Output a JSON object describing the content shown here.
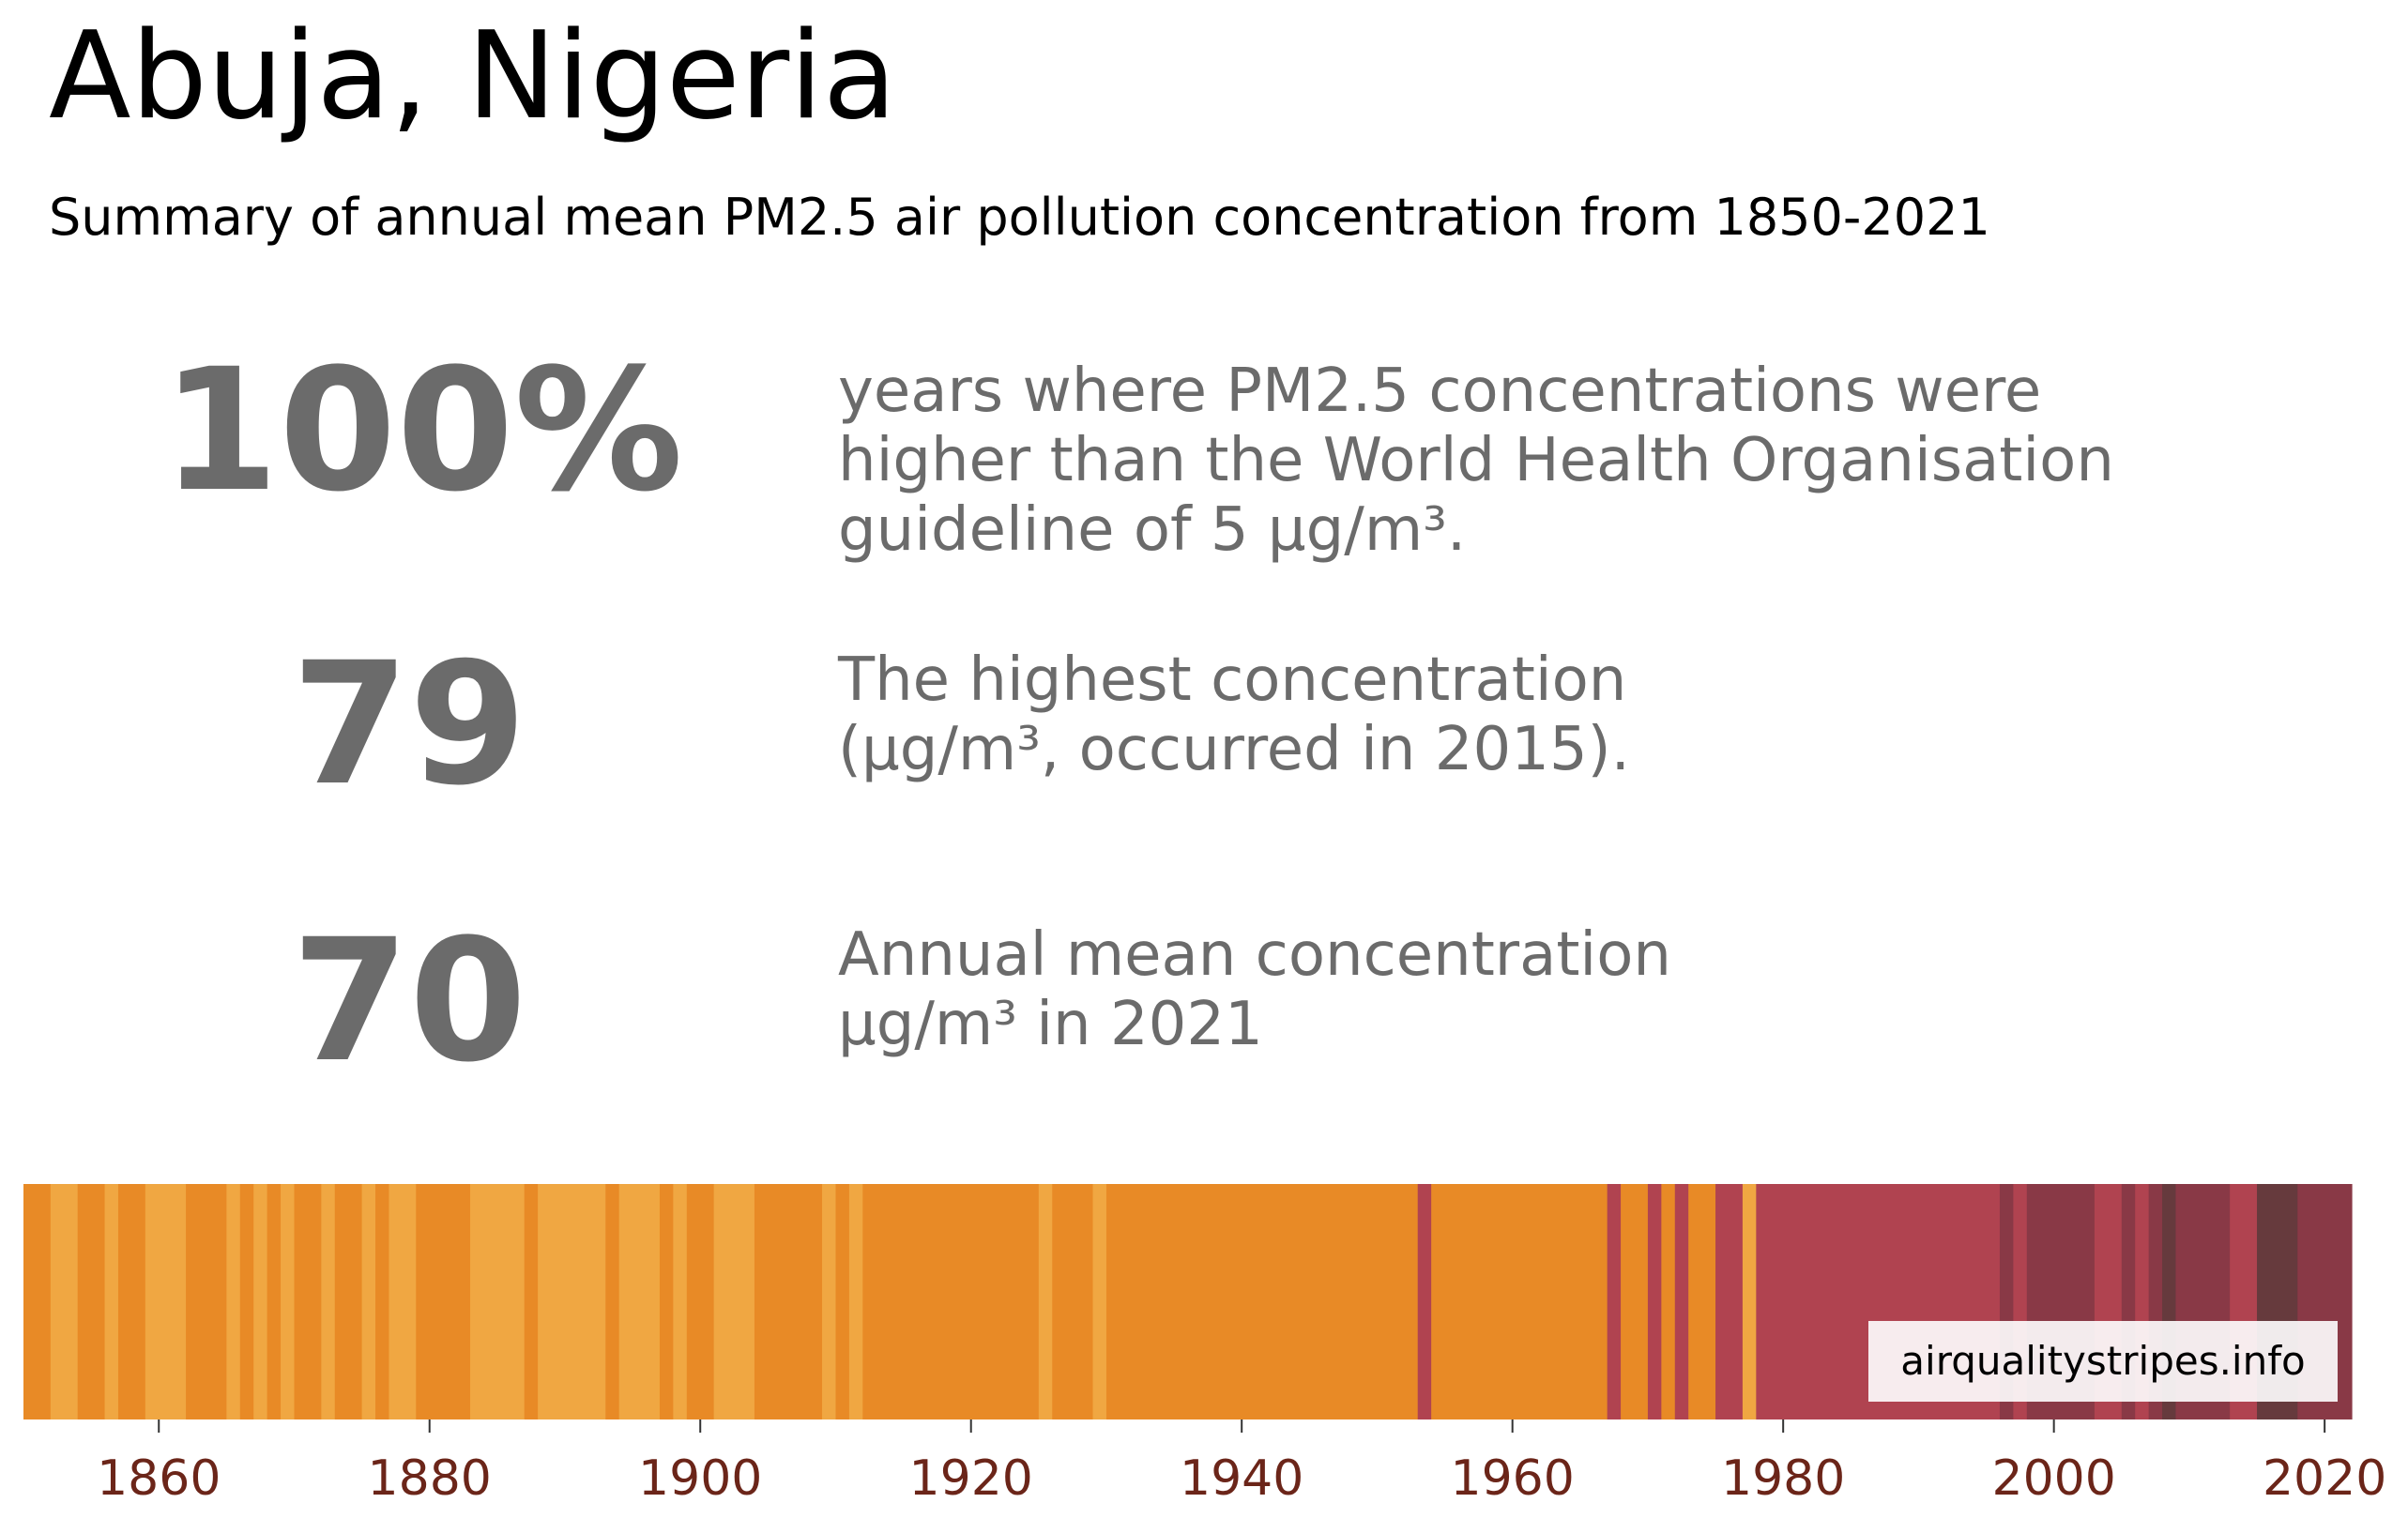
{
  "header": {
    "title": "Abuja, Nigeria",
    "subtitle": "Summary of annual mean PM2.5 air pollution concentration from 1850-2021"
  },
  "stats": [
    {
      "value": "100%",
      "lines": [
        "years where PM2.5 concentrations were",
        "higher than the World Health Organisation",
        "guideline of 5 µg/m³."
      ]
    },
    {
      "value": "79",
      "lines": [
        "The highest concentration",
        "(µg/m³, occurred in 2015)."
      ]
    },
    {
      "value": "70",
      "lines": [
        "Annual mean concentration",
        "µg/m³ in 2021"
      ]
    }
  ],
  "credit": "airqualitystripes.info",
  "colors": {
    "light_orange": "#f0a742",
    "orange": "#e88a26",
    "red": "#b04350",
    "dark_red": "#893946",
    "darkest": "#663a3d",
    "tick_label": "#6b2519",
    "stat_text": "#6b6b6b"
  },
  "chart_data": {
    "type": "heatmap",
    "xlabel": "",
    "ylabel": "",
    "xlim": [
      1850,
      2022
    ],
    "x_ticks": [
      "1860",
      "1880",
      "1900",
      "1920",
      "1940",
      "1960",
      "1980",
      "2000",
      "2020"
    ],
    "grid": false,
    "legend": "none",
    "category_key": {
      "L": "light_orange",
      "O": "orange",
      "R": "red",
      "D": "dark_red",
      "K": "darkest"
    },
    "stripes": [
      {
        "start": 1850,
        "end": 1852,
        "level": "O"
      },
      {
        "start": 1852,
        "end": 1854,
        "level": "L"
      },
      {
        "start": 1854,
        "end": 1856,
        "level": "O"
      },
      {
        "start": 1856,
        "end": 1857,
        "level": "L"
      },
      {
        "start": 1857,
        "end": 1859,
        "level": "O"
      },
      {
        "start": 1859,
        "end": 1862,
        "level": "L"
      },
      {
        "start": 1862,
        "end": 1865,
        "level": "O"
      },
      {
        "start": 1865,
        "end": 1866,
        "level": "L"
      },
      {
        "start": 1866,
        "end": 1867,
        "level": "O"
      },
      {
        "start": 1867,
        "end": 1868,
        "level": "L"
      },
      {
        "start": 1868,
        "end": 1869,
        "level": "O"
      },
      {
        "start": 1869,
        "end": 1870,
        "level": "L"
      },
      {
        "start": 1870,
        "end": 1872,
        "level": "O"
      },
      {
        "start": 1872,
        "end": 1873,
        "level": "L"
      },
      {
        "start": 1873,
        "end": 1875,
        "level": "O"
      },
      {
        "start": 1875,
        "end": 1876,
        "level": "L"
      },
      {
        "start": 1876,
        "end": 1877,
        "level": "O"
      },
      {
        "start": 1877,
        "end": 1879,
        "level": "L"
      },
      {
        "start": 1879,
        "end": 1883,
        "level": "O"
      },
      {
        "start": 1883,
        "end": 1887,
        "level": "L"
      },
      {
        "start": 1887,
        "end": 1888,
        "level": "O"
      },
      {
        "start": 1888,
        "end": 1893,
        "level": "L"
      },
      {
        "start": 1893,
        "end": 1894,
        "level": "O"
      },
      {
        "start": 1894,
        "end": 1897,
        "level": "L"
      },
      {
        "start": 1897,
        "end": 1898,
        "level": "O"
      },
      {
        "start": 1898,
        "end": 1899,
        "level": "L"
      },
      {
        "start": 1899,
        "end": 1901,
        "level": "O"
      },
      {
        "start": 1901,
        "end": 1904,
        "level": "L"
      },
      {
        "start": 1904,
        "end": 1909,
        "level": "O"
      },
      {
        "start": 1909,
        "end": 1910,
        "level": "L"
      },
      {
        "start": 1910,
        "end": 1911,
        "level": "O"
      },
      {
        "start": 1911,
        "end": 1912,
        "level": "L"
      },
      {
        "start": 1912,
        "end": 1925,
        "level": "O"
      },
      {
        "start": 1925,
        "end": 1926,
        "level": "L"
      },
      {
        "start": 1926,
        "end": 1929,
        "level": "O"
      },
      {
        "start": 1929,
        "end": 1930,
        "level": "L"
      },
      {
        "start": 1930,
        "end": 1953,
        "level": "O"
      },
      {
        "start": 1953,
        "end": 1954,
        "level": "R"
      },
      {
        "start": 1954,
        "end": 1967,
        "level": "O"
      },
      {
        "start": 1967,
        "end": 1968,
        "level": "R"
      },
      {
        "start": 1968,
        "end": 1970,
        "level": "O"
      },
      {
        "start": 1970,
        "end": 1971,
        "level": "R"
      },
      {
        "start": 1971,
        "end": 1972,
        "level": "O"
      },
      {
        "start": 1972,
        "end": 1973,
        "level": "R"
      },
      {
        "start": 1973,
        "end": 1975,
        "level": "O"
      },
      {
        "start": 1975,
        "end": 1977,
        "level": "R"
      },
      {
        "start": 1977,
        "end": 1978,
        "level": "L"
      },
      {
        "start": 1978,
        "end": 1996,
        "level": "R"
      },
      {
        "start": 1996,
        "end": 1997,
        "level": "D"
      },
      {
        "start": 1997,
        "end": 1998,
        "level": "R"
      },
      {
        "start": 1998,
        "end": 2003,
        "level": "D"
      },
      {
        "start": 2003,
        "end": 2005,
        "level": "R"
      },
      {
        "start": 2005,
        "end": 2006,
        "level": "D"
      },
      {
        "start": 2006,
        "end": 2007,
        "level": "R"
      },
      {
        "start": 2007,
        "end": 2008,
        "level": "D"
      },
      {
        "start": 2008,
        "end": 2009,
        "level": "K"
      },
      {
        "start": 2009,
        "end": 2013,
        "level": "D"
      },
      {
        "start": 2013,
        "end": 2015,
        "level": "R"
      },
      {
        "start": 2015,
        "end": 2018,
        "level": "K"
      },
      {
        "start": 2018,
        "end": 2022,
        "level": "D"
      }
    ]
  }
}
